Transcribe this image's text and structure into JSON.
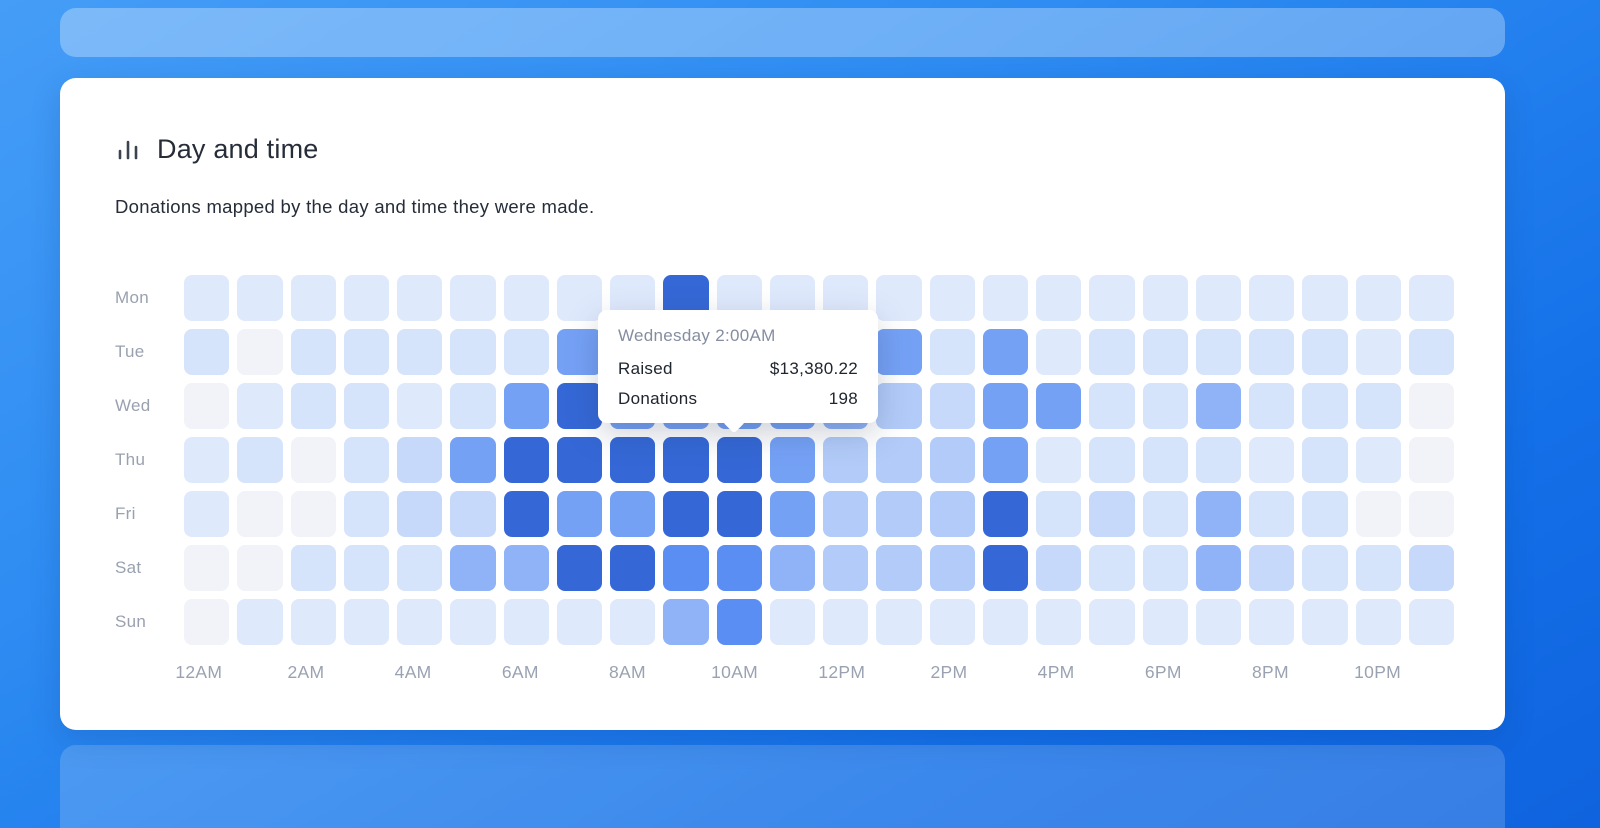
{
  "card": {
    "title": "Day and time",
    "subtitle": "Donations mapped by the day and time they were made."
  },
  "tooltip": {
    "title": "Wednesday 2:00AM",
    "rows": [
      {
        "label": "Raised",
        "value": "$13,380.22"
      },
      {
        "label": "Donations",
        "value": "198"
      }
    ]
  },
  "chart_data": {
    "type": "heatmap",
    "title": "Day and time",
    "subtitle": "Donations mapped by the day and time they were made.",
    "rows": [
      "Mon",
      "Tue",
      "Wed",
      "Thu",
      "Fri",
      "Sat",
      "Sun"
    ],
    "columns_count": 24,
    "x_tick_labels": [
      "12AM",
      "2AM",
      "4AM",
      "6AM",
      "8AM",
      "10AM",
      "12PM",
      "2PM",
      "4PM",
      "6PM",
      "8PM",
      "10PM"
    ],
    "legend": "intensity levels 0 (lowest) to 8 (highest), one value per hour cell",
    "palette": [
      "#f1f3f8",
      "#dfe9fc",
      "#d5e3fb",
      "#c6d9fa",
      "#b2cbf8",
      "#8fb3f6",
      "#75a1f5",
      "#5b8ef2",
      "#3568d6"
    ],
    "intensity_levels": [
      [
        1,
        1,
        1,
        1,
        1,
        1,
        1,
        1,
        1,
        8,
        1,
        1,
        1,
        1,
        1,
        1,
        1,
        1,
        1,
        1,
        1,
        1,
        1,
        1
      ],
      [
        2,
        0,
        2,
        2,
        2,
        2,
        2,
        6,
        6,
        6,
        6,
        6,
        5,
        6,
        2,
        6,
        1,
        2,
        2,
        2,
        2,
        2,
        1,
        2
      ],
      [
        0,
        1,
        2,
        2,
        1,
        2,
        6,
        8,
        6,
        6,
        6,
        6,
        5,
        4,
        3,
        6,
        6,
        2,
        2,
        5,
        2,
        2,
        2,
        0
      ],
      [
        1,
        2,
        0,
        2,
        3,
        6,
        8,
        8,
        8,
        8,
        8,
        6,
        4,
        4,
        4,
        6,
        1,
        2,
        2,
        2,
        1,
        2,
        1,
        0
      ],
      [
        1,
        0,
        0,
        2,
        3,
        3,
        8,
        6,
        6,
        8,
        8,
        6,
        4,
        4,
        4,
        8,
        2,
        3,
        2,
        5,
        2,
        2,
        0,
        0
      ],
      [
        0,
        0,
        2,
        2,
        2,
        5,
        5,
        8,
        8,
        7,
        7,
        5,
        4,
        4,
        4,
        8,
        3,
        2,
        2,
        5,
        3,
        2,
        2,
        3
      ],
      [
        0,
        1,
        1,
        1,
        1,
        1,
        1,
        1,
        1,
        5,
        7,
        1,
        1,
        1,
        1,
        1,
        1,
        1,
        1,
        1,
        1,
        1,
        1,
        1
      ]
    ],
    "highlighted_cell": {
      "day": "Wednesday",
      "time": "2:00AM",
      "raised": "$13,380.22",
      "donations": 198
    }
  }
}
